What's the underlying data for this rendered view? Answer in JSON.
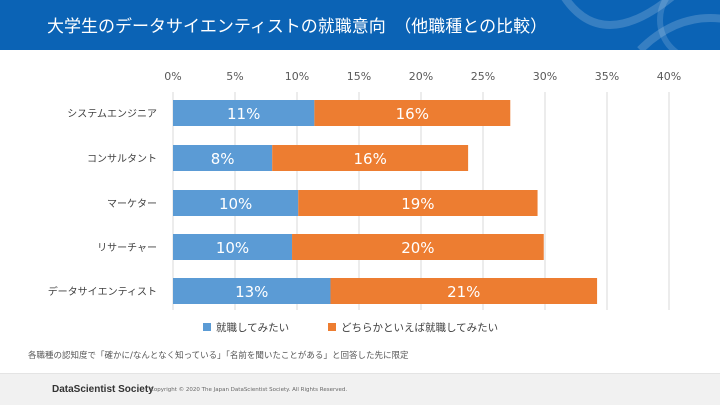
{
  "header": {
    "title": "大学生のデータサイエンティストの就職意向　（他職種との比較）",
    "color": "#0b63b5"
  },
  "chart_data": {
    "type": "bar",
    "orientation": "horizontal",
    "stacked": true,
    "categories": [
      "システムエンジニア",
      "コンサルタント",
      "マーケター",
      "リサーチャー",
      "データサイエンティスト"
    ],
    "series": [
      {
        "name": "就職してみたい",
        "color": "#5b9bd5",
        "values": [
          11.4,
          8.0,
          10.1,
          9.6,
          12.7
        ],
        "labels": [
          "11%",
          "8%",
          "10%",
          "10%",
          "13%"
        ]
      },
      {
        "name": "どちらかといえば就職してみたい",
        "color": "#ed7d31",
        "values": [
          15.8,
          15.8,
          19.3,
          20.3,
          21.5
        ],
        "labels": [
          "16%",
          "16%",
          "19%",
          "20%",
          "21%"
        ]
      }
    ],
    "xlim": [
      0,
      40
    ],
    "xticks": [
      "0%",
      "5%",
      "10%",
      "15%",
      "20%",
      "25%",
      "30%",
      "35%",
      "40%"
    ],
    "grid": true,
    "legend": "bottom"
  },
  "note": "各職種の認知度で「確かに/なんとなく知っている」「名前を聞いたことがある」と回答した先に限定",
  "footer": {
    "brand": "DataScientist Society",
    "copyright": "Copyright © 2020  The Japan DataScientist Society. All Rights Reserved."
  }
}
